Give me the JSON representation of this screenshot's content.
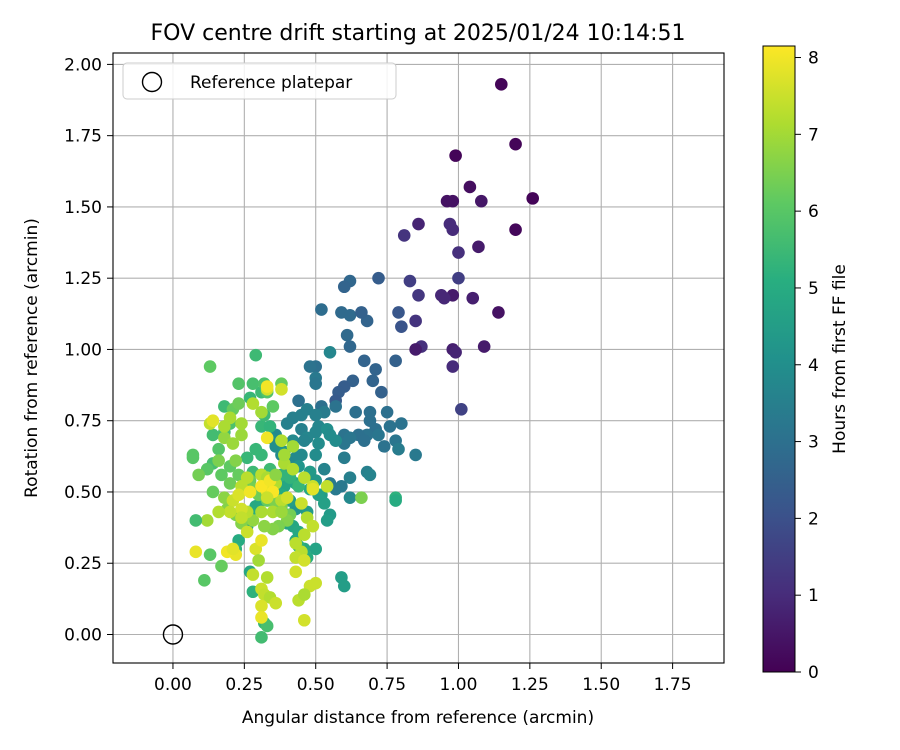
{
  "chart_data": {
    "type": "scatter",
    "title": "FOV centre drift starting at 2025/01/24 10:14:51",
    "xlabel": "Angular distance from reference (arcmin)",
    "ylabel": "Rotation from reference (arcmin)",
    "xlim": [
      -0.21,
      1.93
    ],
    "ylim": [
      -0.1,
      2.04
    ],
    "xticks": [
      "0.00",
      "0.25",
      "0.50",
      "0.75",
      "1.00",
      "1.25",
      "1.50",
      "1.75"
    ],
    "yticks": [
      "0.00",
      "0.25",
      "0.50",
      "0.75",
      "1.00",
      "1.25",
      "1.50",
      "1.75",
      "2.00"
    ],
    "grid": true,
    "legend": {
      "position": "top-left",
      "entries": [
        "Reference platepar"
      ]
    },
    "reference_point": {
      "x": 0.0,
      "y": 0.0
    },
    "colorbar": {
      "label": "Hours from first FF file",
      "colormap": "viridis",
      "range": [
        0,
        8.15
      ],
      "ticks": [
        "0",
        "1",
        "2",
        "3",
        "4",
        "5",
        "6",
        "7",
        "8"
      ]
    },
    "points": [
      [
        1.15,
        1.93,
        0.1
      ],
      [
        1.2,
        1.72,
        0.1
      ],
      [
        0.99,
        1.68,
        0.1
      ],
      [
        1.26,
        1.53,
        0.1
      ],
      [
        1.2,
        1.42,
        0.15
      ],
      [
        1.04,
        1.57,
        0.3
      ],
      [
        0.96,
        1.52,
        0.4
      ],
      [
        0.98,
        1.52,
        0.4
      ],
      [
        1.08,
        1.52,
        0.5
      ],
      [
        1.07,
        1.36,
        0.6
      ],
      [
        0.86,
        1.44,
        0.8
      ],
      [
        0.81,
        1.4,
        1.2
      ],
      [
        0.97,
        1.44,
        1.0
      ],
      [
        0.98,
        1.42,
        1.0
      ],
      [
        1.0,
        1.34,
        1.1
      ],
      [
        1.0,
        1.25,
        1.5
      ],
      [
        0.83,
        1.24,
        1.5
      ],
      [
        0.85,
        1.1,
        1.2
      ],
      [
        0.98,
        1.19,
        0.6
      ],
      [
        1.05,
        1.18,
        0.7
      ],
      [
        0.94,
        1.19,
        0.9
      ],
      [
        0.95,
        1.18,
        0.9
      ],
      [
        0.86,
        1.19,
        1.3
      ],
      [
        1.14,
        1.13,
        0.4
      ],
      [
        1.09,
        1.01,
        0.6
      ],
      [
        0.87,
        1.01,
        1.1
      ],
      [
        0.85,
        1.0,
        0.6
      ],
      [
        0.98,
        1.0,
        0.7
      ],
      [
        0.99,
        0.99,
        0.8
      ],
      [
        0.98,
        0.94,
        1.0
      ],
      [
        1.01,
        0.79,
        1.6
      ],
      [
        0.79,
        1.13,
        2.2
      ],
      [
        0.8,
        1.08,
        2.1
      ],
      [
        0.72,
        1.25,
        2.4
      ],
      [
        0.62,
        1.24,
        2.7
      ],
      [
        0.6,
        1.22,
        2.6
      ],
      [
        0.59,
        1.13,
        2.8
      ],
      [
        0.62,
        1.12,
        2.8
      ],
      [
        0.68,
        1.1,
        2.6
      ],
      [
        0.52,
        1.14,
        2.9
      ],
      [
        0.66,
        1.13,
        2.5
      ],
      [
        0.61,
        1.05,
        2.8
      ],
      [
        0.62,
        1.01,
        2.7
      ],
      [
        0.67,
        0.96,
        2.6
      ],
      [
        0.78,
        0.96,
        2.5
      ],
      [
        0.71,
        0.93,
        2.6
      ],
      [
        0.7,
        0.89,
        2.6
      ],
      [
        0.63,
        0.89,
        2.5
      ],
      [
        0.6,
        0.87,
        2.4
      ],
      [
        0.58,
        0.85,
        2.4
      ],
      [
        0.73,
        0.85,
        2.5
      ],
      [
        0.57,
        0.82,
        2.3
      ],
      [
        0.5,
        0.94,
        3.0
      ],
      [
        0.48,
        0.94,
        3.1
      ],
      [
        0.55,
        0.99,
        3.7
      ],
      [
        0.5,
        0.9,
        3.3
      ],
      [
        0.5,
        0.88,
        3.2
      ],
      [
        0.52,
        0.8,
        3.0
      ],
      [
        0.44,
        0.82,
        3.0
      ],
      [
        0.53,
        0.78,
        3.4
      ],
      [
        0.57,
        0.8,
        3.1
      ],
      [
        0.64,
        0.78,
        3.0
      ],
      [
        0.69,
        0.78,
        3.0
      ],
      [
        0.69,
        0.75,
        3.0
      ],
      [
        0.75,
        0.78,
        3.0
      ],
      [
        0.8,
        0.74,
        3.1
      ],
      [
        0.76,
        0.73,
        3.1
      ],
      [
        0.71,
        0.72,
        3.0
      ],
      [
        0.68,
        0.7,
        3.1
      ],
      [
        0.72,
        0.7,
        3.2
      ],
      [
        0.65,
        0.7,
        3.0
      ],
      [
        0.6,
        0.7,
        3.1
      ],
      [
        0.62,
        0.69,
        3.2
      ],
      [
        0.6,
        0.67,
        3.2
      ],
      [
        0.67,
        0.68,
        3.0
      ],
      [
        0.78,
        0.68,
        3.2
      ],
      [
        0.74,
        0.66,
        3.1
      ],
      [
        0.79,
        0.65,
        3.4
      ],
      [
        0.85,
        0.63,
        3.3
      ],
      [
        0.68,
        0.57,
        3.5
      ],
      [
        0.69,
        0.56,
        3.6
      ],
      [
        0.6,
        0.62,
        3.4
      ],
      [
        0.62,
        0.55,
        3.5
      ],
      [
        0.59,
        0.52,
        3.3
      ],
      [
        0.62,
        0.48,
        3.8
      ],
      [
        0.57,
        0.51,
        3.3
      ],
      [
        0.55,
        0.53,
        3.3
      ],
      [
        0.53,
        0.58,
        3.6
      ],
      [
        0.48,
        0.57,
        3.6
      ],
      [
        0.45,
        0.72,
        3.5
      ],
      [
        0.4,
        0.74,
        3.5
      ],
      [
        0.42,
        0.76,
        3.5
      ],
      [
        0.45,
        0.77,
        3.5
      ],
      [
        0.47,
        0.79,
        3.5
      ],
      [
        0.5,
        0.77,
        3.5
      ],
      [
        0.51,
        0.73,
        3.7
      ],
      [
        0.5,
        0.71,
        3.7
      ],
      [
        0.47,
        0.69,
        3.7
      ],
      [
        0.42,
        0.68,
        3.8
      ],
      [
        0.46,
        0.68,
        3.6
      ],
      [
        0.54,
        0.72,
        4.0
      ],
      [
        0.55,
        0.7,
        3.9
      ],
      [
        0.57,
        0.68,
        3.9
      ],
      [
        0.51,
        0.67,
        3.9
      ],
      [
        0.5,
        0.63,
        3.9
      ],
      [
        0.45,
        0.63,
        3.8
      ],
      [
        0.43,
        0.62,
        3.8
      ],
      [
        0.41,
        0.6,
        3.8
      ],
      [
        0.4,
        0.58,
        3.8
      ],
      [
        0.38,
        0.63,
        3.8
      ],
      [
        0.36,
        0.7,
        3.8
      ],
      [
        0.34,
        0.69,
        4.0
      ],
      [
        0.36,
        0.66,
        4.0
      ],
      [
        0.39,
        0.64,
        4.2
      ],
      [
        0.44,
        0.59,
        4.2
      ],
      [
        0.48,
        0.57,
        4.4
      ],
      [
        0.5,
        0.54,
        4.3
      ],
      [
        0.52,
        0.49,
        4.5
      ],
      [
        0.53,
        0.46,
        4.6
      ],
      [
        0.55,
        0.42,
        4.4
      ],
      [
        0.54,
        0.4,
        4.5
      ],
      [
        0.47,
        0.43,
        4.4
      ],
      [
        0.43,
        0.44,
        4.2
      ],
      [
        0.41,
        0.47,
        4.5
      ],
      [
        0.4,
        0.42,
        4.7
      ],
      [
        0.4,
        0.39,
        4.8
      ],
      [
        0.42,
        0.38,
        4.8
      ],
      [
        0.44,
        0.36,
        4.9
      ],
      [
        0.43,
        0.33,
        4.9
      ],
      [
        0.46,
        0.3,
        4.9
      ],
      [
        0.5,
        0.3,
        4.7
      ],
      [
        0.47,
        0.27,
        5.0
      ],
      [
        0.44,
        0.31,
        5.2
      ],
      [
        0.51,
        0.49,
        4.6
      ],
      [
        0.48,
        0.51,
        4.9
      ],
      [
        0.43,
        0.53,
        4.8
      ],
      [
        0.39,
        0.52,
        4.8
      ],
      [
        0.36,
        0.5,
        4.9
      ],
      [
        0.38,
        0.49,
        5.0
      ],
      [
        0.33,
        0.52,
        4.8
      ],
      [
        0.31,
        0.47,
        4.9
      ],
      [
        0.29,
        0.45,
        4.9
      ],
      [
        0.27,
        0.43,
        5.0
      ],
      [
        0.26,
        0.38,
        4.8
      ],
      [
        0.23,
        0.33,
        5.0
      ],
      [
        0.22,
        0.3,
        5.2
      ],
      [
        0.27,
        0.22,
        4.8
      ],
      [
        0.28,
        0.15,
        5.2
      ],
      [
        0.32,
        0.04,
        5.4
      ],
      [
        0.31,
        -0.01,
        5.6
      ],
      [
        0.33,
        0.03,
        5.7
      ],
      [
        0.59,
        0.2,
        4.5
      ],
      [
        0.6,
        0.17,
        4.5
      ],
      [
        0.78,
        0.48,
        5.2
      ],
      [
        0.78,
        0.47,
        5.0
      ],
      [
        0.66,
        0.48,
        6.5
      ],
      [
        0.38,
        0.56,
        5.3
      ],
      [
        0.41,
        0.55,
        5.3
      ],
      [
        0.44,
        0.52,
        5.4
      ],
      [
        0.34,
        0.58,
        5.5
      ],
      [
        0.31,
        0.56,
        5.6
      ],
      [
        0.28,
        0.57,
        5.5
      ],
      [
        0.26,
        0.62,
        5.4
      ],
      [
        0.29,
        0.65,
        5.4
      ],
      [
        0.31,
        0.63,
        5.4
      ],
      [
        0.31,
        0.73,
        5.4
      ],
      [
        0.34,
        0.73,
        5.3
      ],
      [
        0.32,
        0.77,
        5.5
      ],
      [
        0.27,
        0.83,
        5.4
      ],
      [
        0.31,
        0.85,
        5.5
      ],
      [
        0.28,
        0.88,
        5.7
      ],
      [
        0.32,
        0.88,
        5.8
      ],
      [
        0.33,
        0.85,
        5.9
      ],
      [
        0.38,
        0.88,
        6.2
      ],
      [
        0.35,
        0.8,
        6.1
      ],
      [
        0.29,
        0.98,
        5.5
      ],
      [
        0.23,
        0.88,
        5.9
      ],
      [
        0.18,
        0.8,
        5.5
      ],
      [
        0.2,
        0.74,
        5.8
      ],
      [
        0.18,
        0.71,
        5.6
      ],
      [
        0.14,
        0.7,
        5.6
      ],
      [
        0.16,
        0.65,
        5.9
      ],
      [
        0.14,
        0.6,
        5.7
      ],
      [
        0.17,
        0.56,
        6.1
      ],
      [
        0.2,
        0.59,
        6.1
      ],
      [
        0.2,
        0.53,
        6.3
      ],
      [
        0.23,
        0.56,
        6.2
      ],
      [
        0.27,
        0.54,
        6.3
      ],
      [
        0.28,
        0.51,
        6.4
      ],
      [
        0.3,
        0.49,
        6.3
      ],
      [
        0.33,
        0.47,
        6.2
      ],
      [
        0.36,
        0.46,
        6.5
      ],
      [
        0.38,
        0.45,
        6.5
      ],
      [
        0.41,
        0.42,
        6.4
      ],
      [
        0.4,
        0.4,
        6.6
      ],
      [
        0.37,
        0.38,
        6.5
      ],
      [
        0.35,
        0.37,
        6.6
      ],
      [
        0.32,
        0.38,
        6.7
      ],
      [
        0.28,
        0.4,
        6.8
      ],
      [
        0.24,
        0.39,
        6.6
      ],
      [
        0.22,
        0.42,
        6.5
      ],
      [
        0.19,
        0.44,
        6.6
      ],
      [
        0.18,
        0.48,
        6.7
      ],
      [
        0.14,
        0.5,
        6.2
      ],
      [
        0.07,
        0.63,
        6.0
      ],
      [
        0.07,
        0.62,
        6.0
      ],
      [
        0.13,
        0.94,
        6.1
      ],
      [
        0.18,
        0.69,
        6.8
      ],
      [
        0.21,
        0.67,
        6.9
      ],
      [
        0.24,
        0.7,
        6.9
      ],
      [
        0.24,
        0.74,
        7.0
      ],
      [
        0.21,
        0.79,
        6.2
      ],
      [
        0.23,
        0.81,
        6.3
      ],
      [
        0.2,
        0.76,
        7.1
      ],
      [
        0.18,
        0.73,
        7.1
      ],
      [
        0.28,
        0.81,
        7.2
      ],
      [
        0.31,
        0.78,
        7.0
      ],
      [
        0.33,
        0.86,
        7.6
      ],
      [
        0.38,
        0.86,
        7.6
      ],
      [
        0.13,
        0.74,
        7.4
      ],
      [
        0.14,
        0.75,
        7.8
      ],
      [
        0.24,
        0.52,
        7.3
      ],
      [
        0.26,
        0.55,
        7.3
      ],
      [
        0.31,
        0.56,
        7.3
      ],
      [
        0.33,
        0.55,
        7.1
      ],
      [
        0.36,
        0.53,
        7.2
      ],
      [
        0.39,
        0.6,
        7.1
      ],
      [
        0.39,
        0.63,
        7.0
      ],
      [
        0.42,
        0.66,
        7.0
      ],
      [
        0.38,
        0.68,
        7.2
      ],
      [
        0.42,
        0.58,
        7.2
      ],
      [
        0.46,
        0.55,
        7.3
      ],
      [
        0.49,
        0.52,
        7.5
      ],
      [
        0.54,
        0.52,
        7.4
      ],
      [
        0.49,
        0.51,
        7.8
      ],
      [
        0.38,
        0.47,
        7.3
      ],
      [
        0.35,
        0.43,
        7.1
      ],
      [
        0.31,
        0.43,
        7.1
      ],
      [
        0.26,
        0.43,
        7.3
      ],
      [
        0.24,
        0.44,
        7.6
      ],
      [
        0.24,
        0.41,
        7.4
      ],
      [
        0.21,
        0.47,
        7.5
      ],
      [
        0.2,
        0.43,
        7.4
      ],
      [
        0.16,
        0.43,
        7.2
      ],
      [
        0.23,
        0.49,
        7.7
      ],
      [
        0.33,
        0.5,
        7.8
      ],
      [
        0.27,
        0.5,
        8.0
      ],
      [
        0.31,
        0.52,
        8.1
      ],
      [
        0.34,
        0.54,
        8.0
      ],
      [
        0.35,
        0.5,
        8.1
      ],
      [
        0.33,
        0.48,
        7.5
      ],
      [
        0.4,
        0.48,
        7.6
      ],
      [
        0.45,
        0.46,
        7.5
      ],
      [
        0.47,
        0.41,
        7.2
      ],
      [
        0.49,
        0.38,
        7.4
      ],
      [
        0.46,
        0.35,
        7.3
      ],
      [
        0.43,
        0.32,
        7.3
      ],
      [
        0.45,
        0.29,
        7.3
      ],
      [
        0.43,
        0.27,
        7.4
      ],
      [
        0.46,
        0.26,
        7.6
      ],
      [
        0.43,
        0.22,
        7.6
      ],
      [
        0.48,
        0.17,
        7.5
      ],
      [
        0.5,
        0.18,
        7.5
      ],
      [
        0.44,
        0.12,
        7.3
      ],
      [
        0.46,
        0.14,
        7.1
      ],
      [
        0.33,
        0.2,
        7.2
      ],
      [
        0.31,
        0.16,
        7.5
      ],
      [
        0.32,
        0.14,
        7.4
      ],
      [
        0.34,
        0.13,
        7.2
      ],
      [
        0.36,
        0.11,
        7.5
      ],
      [
        0.31,
        0.1,
        7.7
      ],
      [
        0.31,
        0.06,
        7.9
      ],
      [
        0.28,
        0.21,
        7.4
      ],
      [
        0.29,
        0.3,
        7.7
      ],
      [
        0.31,
        0.33,
        7.9
      ],
      [
        0.26,
        0.36,
        7.5
      ],
      [
        0.22,
        0.28,
        7.9
      ],
      [
        0.12,
        0.4,
        7.0
      ],
      [
        0.08,
        0.4,
        5.6
      ],
      [
        0.11,
        0.19,
        6.0
      ],
      [
        0.13,
        0.28,
        6.0
      ],
      [
        0.17,
        0.24,
        6.2
      ],
      [
        0.08,
        0.29,
        7.9
      ],
      [
        0.19,
        0.29,
        8.0
      ],
      [
        0.21,
        0.3,
        7.8
      ],
      [
        0.33,
        0.69,
        8.0
      ],
      [
        0.33,
        0.87,
        8.0
      ],
      [
        0.46,
        0.05,
        7.6
      ],
      [
        0.38,
        0.43,
        6.9
      ],
      [
        0.36,
        0.56,
        6.7
      ],
      [
        0.22,
        0.61,
        6.6
      ],
      [
        0.16,
        0.61,
        6.5
      ],
      [
        0.12,
        0.58,
        6.0
      ],
      [
        0.09,
        0.56,
        6.4
      ],
      [
        0.3,
        0.26,
        7.0
      ]
    ]
  }
}
